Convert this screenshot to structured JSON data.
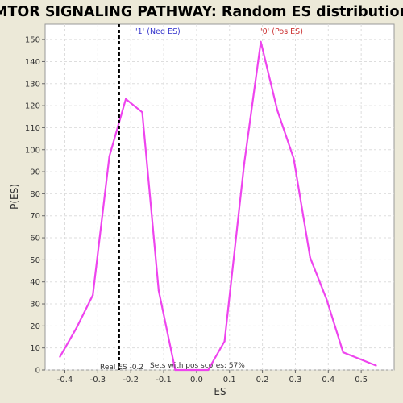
{
  "chart_data": {
    "type": "line",
    "title": "MTOR SIGNALING PATHWAY: Random ES distribution",
    "xlabel": "ES",
    "ylabel": "P(ES)",
    "xlim": [
      -0.46,
      0.6
    ],
    "ylim": [
      0,
      157
    ],
    "x_ticks": [
      -0.4,
      -0.3,
      -0.2,
      -0.1,
      0.0,
      0.1,
      0.2,
      0.3,
      0.4,
      0.5
    ],
    "x_tick_labels": [
      "-0.4",
      "-0.3",
      "-0.2",
      "-0.1",
      "0.0",
      "0.1",
      "0.2",
      "0.3",
      "0.4",
      "0.5"
    ],
    "y_ticks": [
      0,
      10,
      20,
      30,
      40,
      50,
      60,
      70,
      80,
      90,
      100,
      110,
      120,
      130,
      140,
      150
    ],
    "y_tick_labels": [
      "0",
      "10",
      "20",
      "30",
      "40",
      "50",
      "60",
      "70",
      "80",
      "90",
      "100",
      "110",
      "120",
      "130",
      "140",
      "150"
    ],
    "grid": true,
    "series": [
      {
        "color": "#ee44ee",
        "x": [
          -0.415,
          -0.365,
          -0.315,
          -0.265,
          -0.215,
          -0.165,
          -0.115,
          -0.065,
          -0.015,
          0.035,
          0.085,
          0.145,
          0.195,
          0.245,
          0.295,
          0.345,
          0.395,
          0.445,
          0.545
        ],
        "y": [
          6,
          19,
          34,
          97,
          123,
          117,
          36,
          0,
          0,
          0,
          13,
          94,
          149,
          118,
          96,
          51,
          32,
          8,
          2
        ]
      }
    ],
    "real_es": {
      "value": -0.235,
      "color": "#000000",
      "label": "Real ES -0.2"
    },
    "pos_scores_text": "Sets with pos scores: 57%",
    "legend": [
      {
        "text": "'1' (Neg ES)",
        "color": "#3333cc"
      },
      {
        "text": "'0' (Pos ES)",
        "color": "#cc3333"
      }
    ]
  }
}
